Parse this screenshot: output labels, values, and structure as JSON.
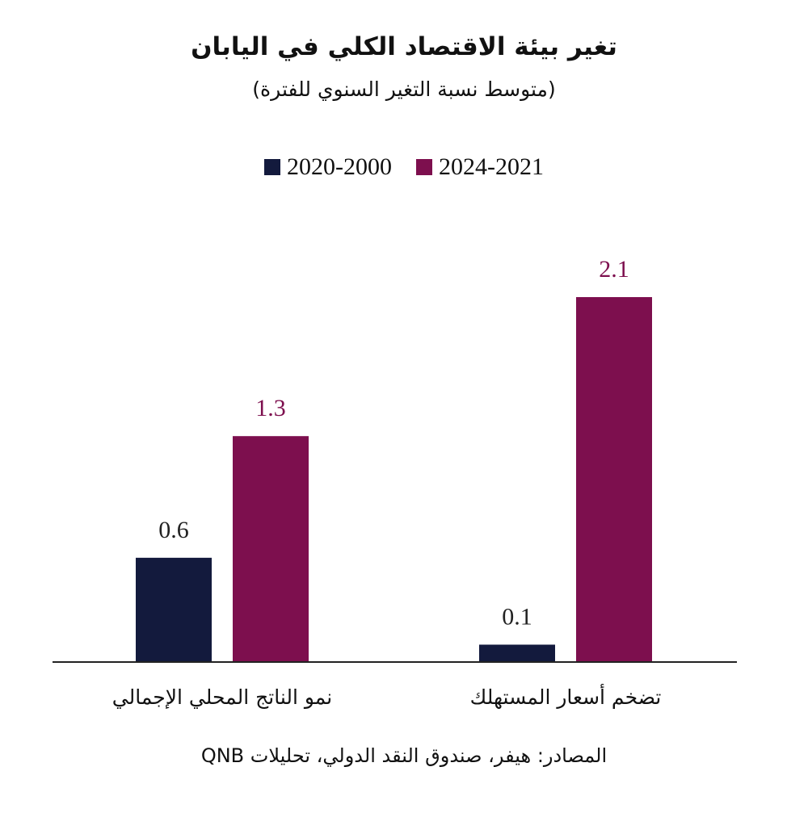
{
  "chart_data": {
    "type": "bar",
    "title": "تغير بيئة الاقتصاد الكلي في اليابان",
    "subtitle": "(متوسط نسبة التغير السنوي للفترة)",
    "categories": [
      "تضخم أسعار المستهلك",
      "نمو الناتج المحلي الإجمالي"
    ],
    "series": [
      {
        "name": "2020-2000",
        "values": [
          0.1,
          0.6
        ],
        "color": "#131a3d"
      },
      {
        "name": "2024-2021",
        "values": [
          2.1,
          1.3
        ],
        "color": "#7d0f4e"
      }
    ],
    "ylim": [
      0,
      2.1
    ],
    "legend_position": "top-center",
    "source": "المصادر: هيفر، صندوق النقد الدولي، تحليلات QNB"
  }
}
